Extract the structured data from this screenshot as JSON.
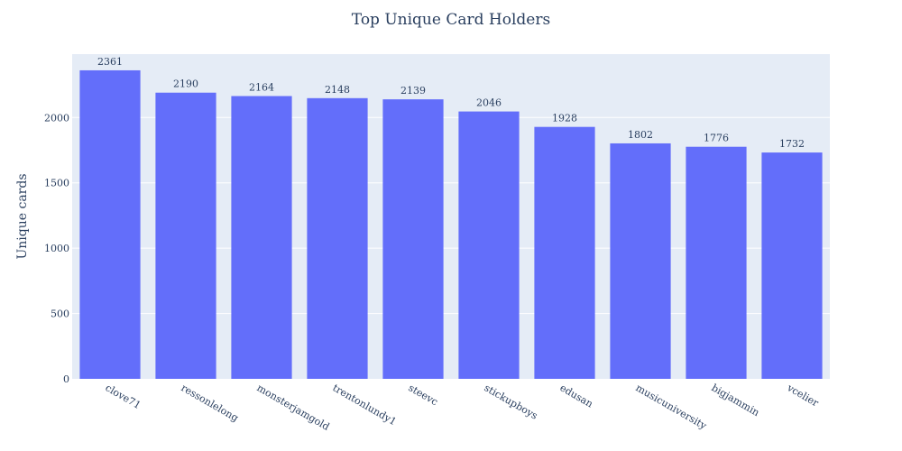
{
  "chart_data": {
    "type": "bar",
    "title": "Top Unique Card Holders",
    "xlabel": "",
    "ylabel": "Unique cards",
    "categories": [
      "clove71",
      "ressonlelong",
      "monsterjamgold",
      "trentonlundy1",
      "steevc",
      "stickupboys",
      "edusan",
      "musicuniversity",
      "bigjammin",
      "vcelier"
    ],
    "values": [
      2361,
      2190,
      2164,
      2148,
      2139,
      2046,
      1928,
      1802,
      1776,
      1732
    ],
    "ylim": [
      0,
      2485
    ],
    "yticks": [
      0,
      500,
      1000,
      1500,
      2000
    ],
    "grid": true,
    "bar_color": "#636efa",
    "plot_bg": "#e5ecf6",
    "text_color": "#2a3f5f"
  }
}
